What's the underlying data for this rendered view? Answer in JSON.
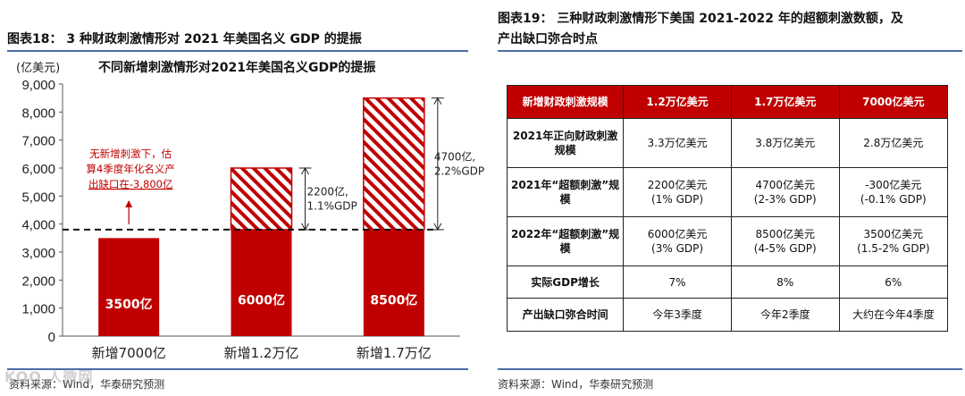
{
  "left_panel": {
    "figure_title": "图表18： 3 种财政刺激情形对 2021 年美国名义 GDP 的提振",
    "source": "资料来源：Wind，华泰研究预测"
  },
  "right_panel": {
    "figure_title_line1": "图表19： 三种财政刺激情形下美国 2021-2022 年的超额刺激数额，及",
    "figure_title_line2": "产出缺口弥合时点",
    "source": "资料来源：Wind，华泰研究预测",
    "table": {
      "header": [
        "新增财政刺激规模",
        "1.2万亿美元",
        "1.7万亿美元",
        "7000亿美元"
      ],
      "rows": [
        {
          "label": "2021年正向财政刺激规模",
          "cells": [
            "3.3万亿美元",
            "3.8万亿美元",
            "2.8万亿美元"
          ]
        },
        {
          "label": "2021年“超额刺激”规模",
          "cells": [
            "2200亿美元\n(1% GDP)",
            "4700亿美元\n(2-3% GDP)",
            "-300亿美元\n(-0.1% GDP)"
          ]
        },
        {
          "label": "2022年“超额刺激”规模",
          "cells": [
            "6000亿美元\n(3% GDP)",
            "8500亿美元\n(4-5% GDP)",
            "3500亿美元\n(1.5-2% GDP)"
          ]
        },
        {
          "label": "实际GDP增长",
          "cells": [
            "7%",
            "8%",
            "6%"
          ]
        },
        {
          "label": "产出缺口弥合时间",
          "cells": [
            "今年3季度",
            "今年2季度",
            "大约在今年4季度"
          ]
        }
      ]
    }
  },
  "watermark": "KOO 人微网",
  "colors": {
    "bar_red": "#c00000",
    "rule_blue": "#4a6ea9",
    "annotation_red": "#c00000"
  },
  "chart_data": {
    "type": "bar",
    "title": "不同新增刺激情形对2021年美国名义GDP的提振",
    "ylabel": "(亿美元)",
    "ylim": [
      0,
      9000
    ],
    "yticks": [
      0,
      1000,
      2000,
      3000,
      4000,
      5000,
      6000,
      7000,
      8000,
      9000
    ],
    "ytick_labels": [
      "0",
      "1,000",
      "2,000",
      "3,000",
      "4,000",
      "5,000",
      "6,000",
      "7,000",
      "8,000",
      "9,000"
    ],
    "categories": [
      "新增7000亿",
      "新增1.2万亿",
      "新增1.7万亿"
    ],
    "values": [
      3500,
      6000,
      8500
    ],
    "bar_labels": [
      "3500亿",
      "6000亿",
      "8500亿"
    ],
    "output_gap_line": 3800,
    "excess": [
      {
        "category": "新增1.2万亿",
        "from": 3800,
        "to": 6000,
        "label_line1": "2200亿,",
        "label_line2": "1.1%GDP"
      },
      {
        "category": "新增1.7万亿",
        "from": 3800,
        "to": 8500,
        "label_line1": "4700亿,",
        "label_line2": "2.2%GDP"
      }
    ],
    "gap_annotation": {
      "lines": [
        "无新增刺激下，估",
        "算4季度年化名义产",
        "出缺口在-3,800亿"
      ],
      "category": "新增7000亿"
    },
    "legend": "none",
    "grid": false
  }
}
